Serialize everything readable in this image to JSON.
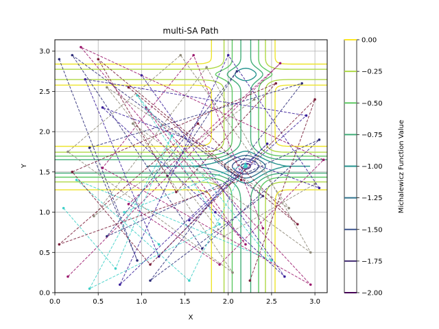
{
  "chart_data": {
    "type": "line",
    "title": "multi-SA Path",
    "xlabel": "X",
    "ylabel": "Y",
    "xlim": [
      0,
      3.1416
    ],
    "ylim": [
      0,
      3.1416
    ],
    "grid": true,
    "xticks": [
      "0.0",
      "0.5",
      "1.0",
      "1.5",
      "2.0",
      "2.5",
      "3.0"
    ],
    "yticks": [
      "0.0",
      "0.5",
      "1.0",
      "1.5",
      "2.0",
      "2.5",
      "3.0"
    ],
    "contour": {
      "function": "Michalewicz",
      "levels": [
        -2.0,
        -1.75,
        -1.5,
        -1.25,
        -1.0,
        -0.75,
        -0.5,
        -0.25,
        0.0
      ]
    },
    "colorbar": {
      "label": "Michalewicz Function Value",
      "ticks": [
        "0.00",
        "−0.25",
        "−0.50",
        "−0.75",
        "−1.00",
        "−1.25",
        "−1.50",
        "−1.75",
        "−2.00"
      ],
      "range": [
        -2.0,
        0.0
      ]
    },
    "minimum_marker": {
      "x": 2.2,
      "y": 1.57
    },
    "series": [
      {
        "color": "#2f2f7a",
        "x": [
          0.05,
          0.95,
          0.4,
          2.85,
          1.1,
          2.4,
          0.2,
          1.7,
          3.05,
          0.6,
          2.1,
          1.3
        ],
        "y": [
          2.9,
          0.4,
          1.8,
          2.6,
          0.15,
          1.2,
          2.95,
          0.55,
          1.9,
          0.7,
          2.75,
          1.45
        ]
      },
      {
        "color": "#9c1a6e",
        "x": [
          0.15,
          2.6,
          0.85,
          1.9,
          3.1,
          0.3,
          2.2,
          1.05,
          2.95,
          0.55,
          1.6,
          2.4
        ],
        "y": [
          0.2,
          2.85,
          1.1,
          0.35,
          1.65,
          3.05,
          0.6,
          2.3,
          0.1,
          1.55,
          2.95,
          0.8
        ]
      },
      {
        "color": "#3fd0c8",
        "x": [
          0.1,
          0.7,
          1.35,
          0.4,
          1.9,
          0.95,
          2.5,
          0.25,
          1.55,
          2.2,
          0.8,
          1.2
        ],
        "y": [
          1.05,
          0.3,
          1.95,
          0.05,
          0.85,
          2.45,
          0.4,
          1.4,
          0.15,
          1.6,
          1.0,
          0.6
        ]
      },
      {
        "color": "#8f8a7a",
        "x": [
          2.3,
          0.45,
          1.75,
          2.95,
          0.9,
          2.05,
          0.15,
          1.45,
          2.7,
          0.6,
          1.95,
          3.0
        ],
        "y": [
          2.4,
          0.95,
          2.8,
          0.5,
          2.1,
          0.25,
          1.75,
          2.95,
          1.05,
          2.55,
          0.7,
          1.35
        ]
      },
      {
        "color": "#3a1f9a",
        "x": [
          1.55,
          2.9,
          0.35,
          1.2,
          2.45,
          0.75,
          2.0,
          3.05,
          0.55,
          1.85,
          2.65,
          1.0
        ],
        "y": [
          0.9,
          2.2,
          2.65,
          0.45,
          1.85,
          0.1,
          2.95,
          1.3,
          2.3,
          1.0,
          0.2,
          2.7
        ]
      },
      {
        "color": "#7a1e3a",
        "x": [
          0.85,
          2.15,
          0.05,
          1.65,
          2.8,
          0.5,
          1.4,
          2.55,
          0.2,
          1.1,
          3.0,
          2.25
        ],
        "y": [
          2.55,
          1.4,
          0.6,
          2.1,
          0.85,
          2.9,
          1.25,
          2.6,
          1.5,
          0.35,
          2.4,
          0.15
        ]
      }
    ]
  }
}
